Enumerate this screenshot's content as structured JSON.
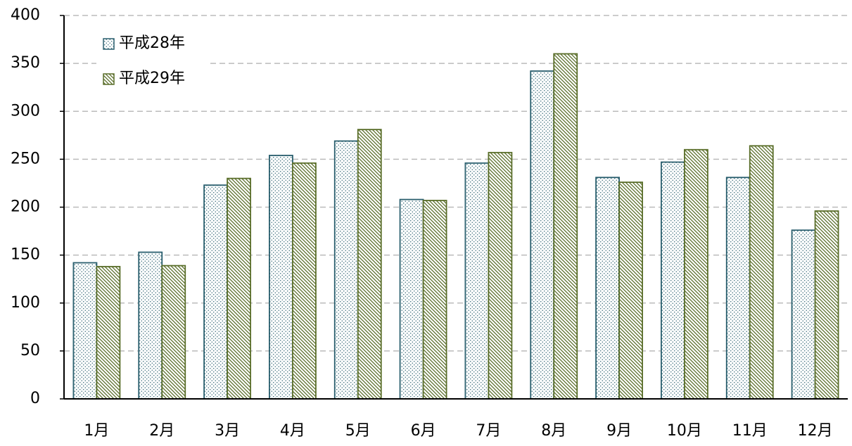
{
  "chart_data": {
    "type": "bar",
    "categories": [
      "1月",
      "2月",
      "3月",
      "4月",
      "5月",
      "6月",
      "7月",
      "8月",
      "9月",
      "10月",
      "11月",
      "12月"
    ],
    "series": [
      {
        "name": "平成28年",
        "color": "#2a5f6e",
        "values": [
          142,
          153,
          223,
          254,
          269,
          208,
          246,
          342,
          231,
          247,
          231,
          176
        ]
      },
      {
        "name": "平成29年",
        "color": "#5a6e2a",
        "values": [
          138,
          139,
          230,
          246,
          281,
          207,
          257,
          360,
          226,
          260,
          264,
          196
        ]
      }
    ],
    "ylim": [
      0,
      400
    ],
    "yticks": [
      0,
      50,
      100,
      150,
      200,
      250,
      300,
      350,
      400
    ],
    "grid": true,
    "legend": "top-left"
  }
}
